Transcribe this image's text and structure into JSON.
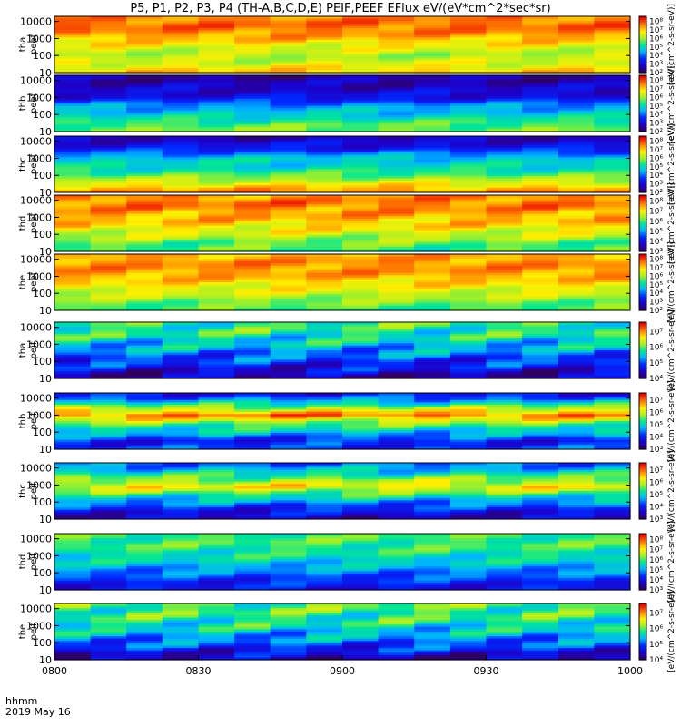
{
  "title": "P5, P1, P2, P3, P4 (TH-A,B,C,D,E) PEIF,PEEF EFlux eV/(eV*cm^2*sec*sr)",
  "x_axis": {
    "label_line1": "hhmm",
    "label_line2": "2019 May 16",
    "ticks": [
      "0800",
      "0830",
      "0900",
      "0930",
      "1000"
    ]
  },
  "colorbar_title": "[eV/(cm^2-s-sr-eV)]",
  "chart_data": [
    {
      "type": "heatmap",
      "series": "tha peef",
      "ylabel": [
        "tha",
        "peef"
      ],
      "y_scale": "log",
      "ylim": [
        10,
        20000
      ],
      "yticks": [
        10,
        100,
        1000,
        10000
      ],
      "colorbar_ticks": [
        "10^2",
        "10^3",
        "10^4",
        "10^5",
        "10^6",
        "10^7",
        "10^8"
      ],
      "bands": [
        {
          "e": 10,
          "lev": 7.2
        },
        {
          "e": 30,
          "lev": 6.6
        },
        {
          "e": 100,
          "lev": 6.2
        },
        {
          "e": 400,
          "lev": 6.8
        },
        {
          "e": 1500,
          "lev": 7.5
        },
        {
          "e": 6000,
          "lev": 7.9
        },
        {
          "e": 20000,
          "lev": 7.6
        }
      ]
    },
    {
      "type": "heatmap",
      "series": "thb peef",
      "ylabel": [
        "thb",
        "peef"
      ],
      "y_scale": "log",
      "ylim": [
        10,
        20000
      ],
      "yticks": [
        10,
        100,
        1000,
        10000
      ],
      "colorbar_ticks": [
        "10^2",
        "10^3",
        "10^4",
        "10^5",
        "10^6",
        "10^7",
        "10^8"
      ],
      "bands": [
        {
          "e": 10,
          "lev": 5.9
        },
        {
          "e": 30,
          "lev": 5.6
        },
        {
          "e": 100,
          "lev": 4.8
        },
        {
          "e": 300,
          "lev": 4.4
        },
        {
          "e": 1000,
          "lev": 3.2
        },
        {
          "e": 4000,
          "lev": 2.8
        },
        {
          "e": 20000,
          "lev": 2.5
        }
      ]
    },
    {
      "type": "heatmap",
      "series": "thc peef",
      "ylabel": [
        "thc",
        "peef"
      ],
      "y_scale": "log",
      "ylim": [
        10,
        20000
      ],
      "yticks": [
        10,
        100,
        1000,
        10000
      ],
      "colorbar_ticks": [
        "10^2",
        "10^3",
        "10^4",
        "10^5",
        "10^6",
        "10^7",
        "10^8"
      ],
      "bands": [
        {
          "e": 10,
          "lev": 7.7
        },
        {
          "e": 30,
          "lev": 6.8
        },
        {
          "e": 100,
          "lev": 5.7
        },
        {
          "e": 300,
          "lev": 5.0
        },
        {
          "e": 1000,
          "lev": 4.8
        },
        {
          "e": 4000,
          "lev": 3.3
        },
        {
          "e": 20000,
          "lev": 2.6
        }
      ]
    },
    {
      "type": "heatmap",
      "series": "thd peef",
      "ylabel": [
        "thd",
        "peef"
      ],
      "y_scale": "log",
      "ylim": [
        10,
        20000
      ],
      "yticks": [
        10,
        100,
        1000,
        10000
      ],
      "colorbar_ticks": [
        "10^3",
        "10^4",
        "10^5",
        "10^6",
        "10^7",
        "10^8"
      ],
      "bands": [
        {
          "e": 10,
          "lev": 6.0
        },
        {
          "e": 30,
          "lev": 6.2
        },
        {
          "e": 100,
          "lev": 6.8
        },
        {
          "e": 400,
          "lev": 7.3
        },
        {
          "e": 1500,
          "lev": 7.6
        },
        {
          "e": 6000,
          "lev": 7.9
        },
        {
          "e": 20000,
          "lev": 7.7
        }
      ]
    },
    {
      "type": "heatmap",
      "series": "the peef",
      "ylabel": [
        "the",
        "peef"
      ],
      "y_scale": "log",
      "ylim": [
        10,
        20000
      ],
      "yticks": [
        10,
        100,
        1000,
        10000
      ],
      "colorbar_ticks": [
        "10^2",
        "10^3",
        "10^4",
        "10^5",
        "10^6",
        "10^7",
        "10^8"
      ],
      "bands": [
        {
          "e": 10,
          "lev": 5.5
        },
        {
          "e": 30,
          "lev": 5.9
        },
        {
          "e": 100,
          "lev": 6.5
        },
        {
          "e": 400,
          "lev": 7.0
        },
        {
          "e": 1500,
          "lev": 7.5
        },
        {
          "e": 6000,
          "lev": 7.6
        },
        {
          "e": 20000,
          "lev": 7.3
        }
      ]
    },
    {
      "type": "heatmap",
      "series": "tha peif",
      "ylabel": [
        "tha",
        "peif"
      ],
      "y_scale": "log",
      "ylim": [
        10,
        20000
      ],
      "yticks": [
        10,
        100,
        1000,
        10000
      ],
      "colorbar_ticks": [
        "10^4",
        "10^5",
        "10^6",
        "10^7"
      ],
      "bands": [
        {
          "e": 10,
          "lev": 4.2
        },
        {
          "e": 30,
          "lev": 4.6
        },
        {
          "e": 100,
          "lev": 4.9
        },
        {
          "e": 300,
          "lev": 5.2
        },
        {
          "e": 1000,
          "lev": 5.5
        },
        {
          "e": 4000,
          "lev": 5.8
        },
        {
          "e": 20000,
          "lev": 5.9
        }
      ]
    },
    {
      "type": "heatmap",
      "series": "thb peif",
      "ylabel": [
        "thb",
        "peif"
      ],
      "y_scale": "log",
      "ylim": [
        10,
        20000
      ],
      "yticks": [
        10,
        100,
        1000,
        10000
      ],
      "colorbar_ticks": [
        "10^3",
        "10^4",
        "10^5",
        "10^6",
        "10^7"
      ],
      "bands": [
        {
          "e": 10,
          "lev": 4.2
        },
        {
          "e": 30,
          "lev": 4.0
        },
        {
          "e": 100,
          "lev": 4.9
        },
        {
          "e": 300,
          "lev": 5.6
        },
        {
          "e": 1000,
          "lev": 7.0
        },
        {
          "e": 3000,
          "lev": 5.7
        },
        {
          "e": 10000,
          "lev": 4.3
        },
        {
          "e": 20000,
          "lev": 3.8
        }
      ]
    },
    {
      "type": "heatmap",
      "series": "thc peif",
      "ylabel": [
        "thc",
        "peif"
      ],
      "y_scale": "log",
      "ylim": [
        10,
        20000
      ],
      "yticks": [
        10,
        100,
        1000,
        10000
      ],
      "colorbar_ticks": [
        "10^3",
        "10^4",
        "10^5",
        "10^6",
        "10^7"
      ],
      "bands": [
        {
          "e": 10,
          "lev": 3.5
        },
        {
          "e": 30,
          "lev": 3.9
        },
        {
          "e": 100,
          "lev": 4.6
        },
        {
          "e": 300,
          "lev": 5.5
        },
        {
          "e": 800,
          "lev": 6.4
        },
        {
          "e": 2000,
          "lev": 5.8
        },
        {
          "e": 6000,
          "lev": 5.0
        },
        {
          "e": 20000,
          "lev": 4.3
        }
      ]
    },
    {
      "type": "heatmap",
      "series": "thd peif",
      "ylabel": [
        "thd",
        "peif"
      ],
      "y_scale": "log",
      "ylim": [
        10,
        20000
      ],
      "yticks": [
        10,
        100,
        1000,
        10000
      ],
      "colorbar_ticks": [
        "10^3",
        "10^4",
        "10^5",
        "10^6",
        "10^7",
        "10^8"
      ],
      "bands": [
        {
          "e": 10,
          "lev": 4.0
        },
        {
          "e": 30,
          "lev": 4.3
        },
        {
          "e": 100,
          "lev": 4.8
        },
        {
          "e": 300,
          "lev": 5.3
        },
        {
          "e": 1000,
          "lev": 5.7
        },
        {
          "e": 4000,
          "lev": 6.0
        },
        {
          "e": 20000,
          "lev": 6.0
        }
      ]
    },
    {
      "type": "heatmap",
      "series": "the peif",
      "ylabel": [
        "the",
        "peif"
      ],
      "y_scale": "log",
      "ylim": [
        10,
        20000
      ],
      "yticks": [
        10,
        100,
        1000,
        10000
      ],
      "colorbar_ticks": [
        "10^4",
        "10^5",
        "10^6",
        "10^7"
      ],
      "bands": [
        {
          "e": 10,
          "lev": 4.3
        },
        {
          "e": 30,
          "lev": 4.7
        },
        {
          "e": 100,
          "lev": 5.1
        },
        {
          "e": 300,
          "lev": 5.4
        },
        {
          "e": 1000,
          "lev": 5.7
        },
        {
          "e": 4000,
          "lev": 5.9
        },
        {
          "e": 20000,
          "lev": 6.0
        }
      ]
    }
  ]
}
